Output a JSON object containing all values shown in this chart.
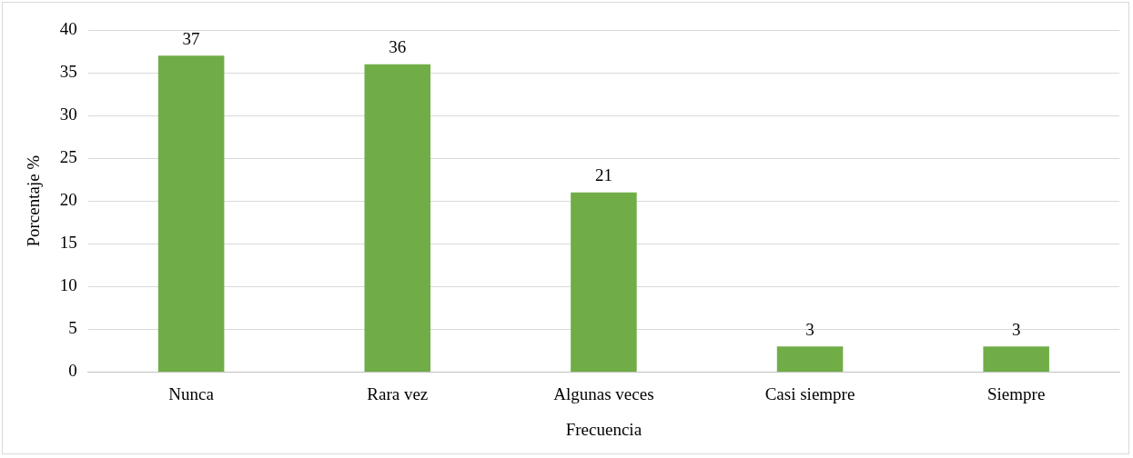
{
  "chart_data": {
    "type": "bar",
    "categories": [
      "Nunca",
      "Rara vez",
      "Algunas veces",
      "Casi siempre",
      "Siempre"
    ],
    "values": [
      37,
      36,
      21,
      3,
      3
    ],
    "color": "#70ad47",
    "xlabel": "Frecuencia",
    "ylabel": "Porcentaje %",
    "ylim": [
      0,
      40
    ],
    "yticks": [
      0,
      5,
      10,
      15,
      20,
      25,
      30,
      35,
      40
    ],
    "grid": "y",
    "data_labels": true,
    "legend": false
  }
}
